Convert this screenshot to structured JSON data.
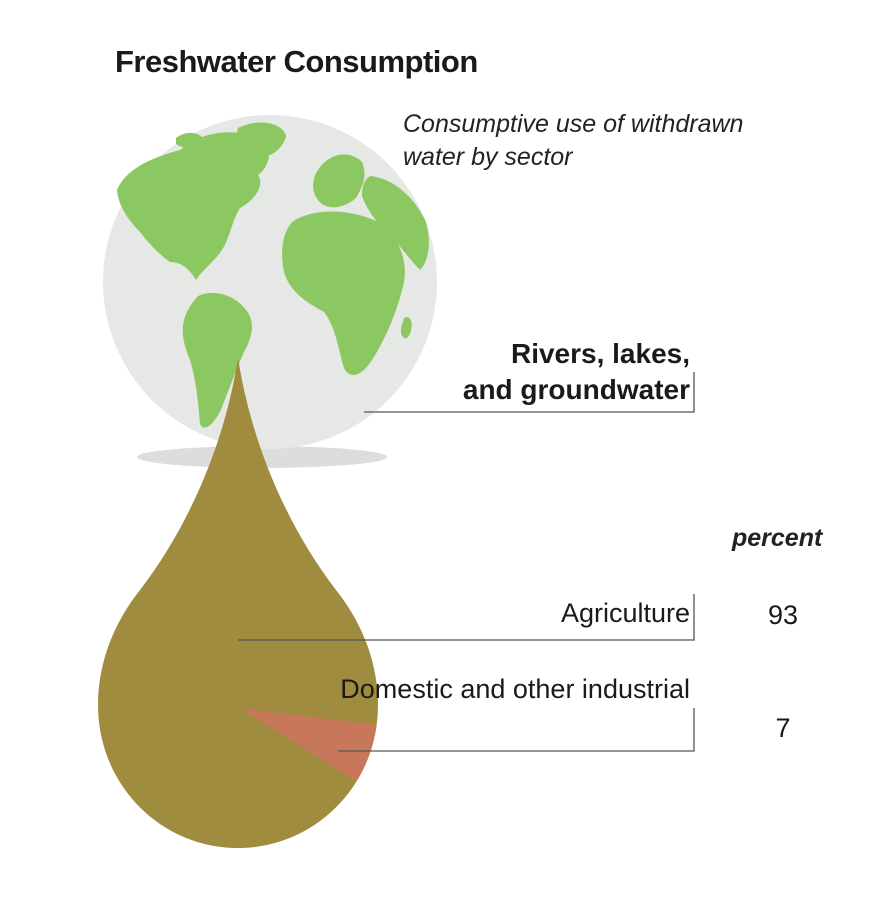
{
  "title": "Freshwater Consumption",
  "subtitle_lines": [
    "Consumptive use of withdrawn",
    "water by sector"
  ],
  "source_lines": [
    "Rivers, lakes,",
    "and groundwater"
  ],
  "unit_label": "percent",
  "colors": {
    "globe_ocean": "#e6e8e6",
    "globe_land": "#8cc862",
    "globe_shadow": "#cfcfcf",
    "agriculture": "#a08c3e",
    "domestic": "#c8785a",
    "leader_line": "#555555"
  },
  "chart_data": {
    "type": "pie",
    "title": "Freshwater Consumption",
    "subtitle": "Consumptive use of withdrawn water by sector",
    "unit": "percent",
    "categories": [
      "Agriculture",
      "Domestic and other industrial"
    ],
    "category_lines": [
      [
        "Agriculture"
      ],
      [
        "Domestic and",
        "other industrial"
      ]
    ],
    "values": [
      93,
      7
    ]
  }
}
